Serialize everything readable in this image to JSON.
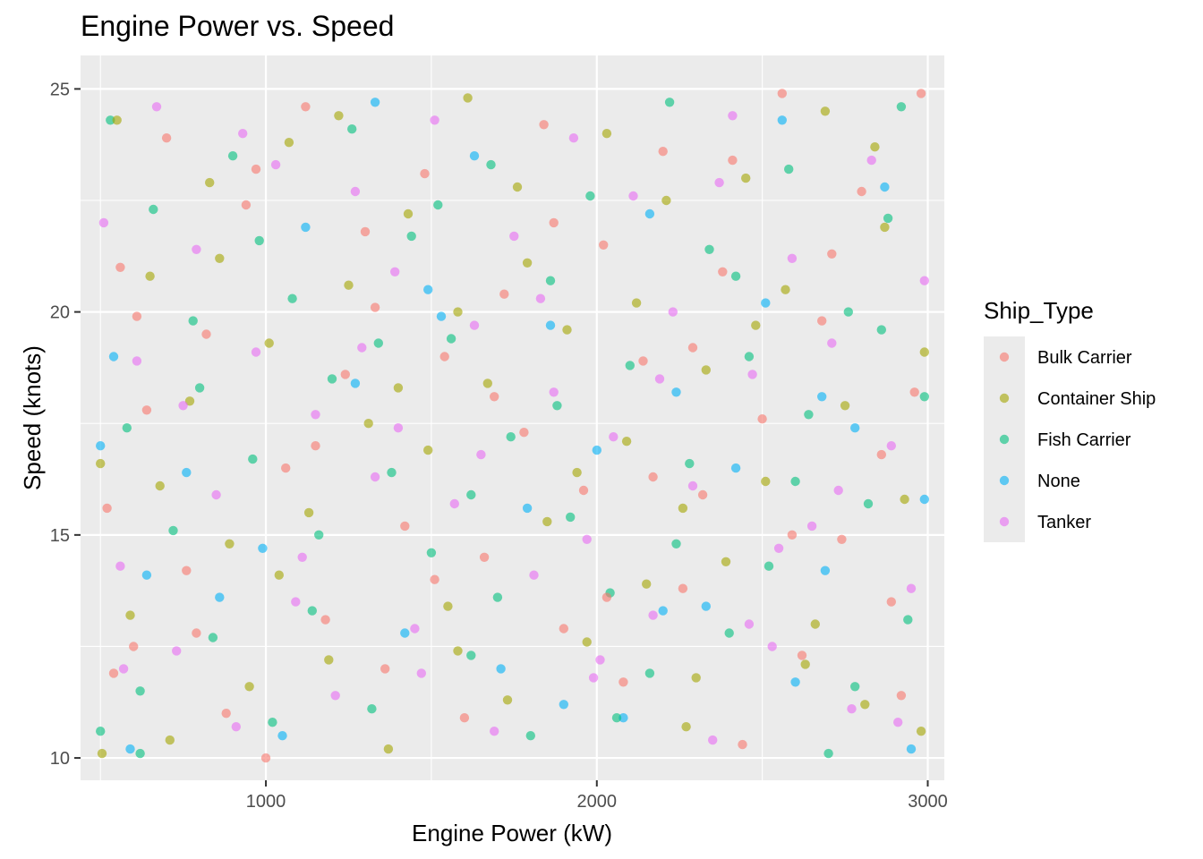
{
  "chart_data": {
    "type": "scatter",
    "title": "Engine Power vs. Speed",
    "xlabel": "Engine Power (kW)",
    "ylabel": "Speed (knots)",
    "xlim": [
      440,
      3050
    ],
    "ylim": [
      9.5,
      25.75
    ],
    "x_ticks": [
      1000,
      2000,
      3000
    ],
    "x_tick_labels": [
      "1000",
      "2000",
      "3000"
    ],
    "y_ticks": [
      10,
      15,
      20,
      25
    ],
    "y_tick_labels": [
      "10",
      "15",
      "20",
      "25"
    ],
    "grid": true,
    "legend": {
      "title": "Ship_Type",
      "placement": "right"
    },
    "point_opacity": 0.6,
    "series": [
      {
        "name": "Bulk Carrier",
        "color": "#F8766D",
        "points": [
          [
            520,
            15.6
          ],
          [
            560,
            21.0
          ],
          [
            600,
            12.5
          ],
          [
            640,
            17.8
          ],
          [
            700,
            23.9
          ],
          [
            760,
            14.2
          ],
          [
            820,
            19.5
          ],
          [
            880,
            11.0
          ],
          [
            940,
            22.4
          ],
          [
            1000,
            10.0
          ],
          [
            1060,
            16.5
          ],
          [
            1120,
            24.6
          ],
          [
            1180,
            13.1
          ],
          [
            1240,
            18.6
          ],
          [
            1300,
            21.8
          ],
          [
            1360,
            12.0
          ],
          [
            1420,
            15.2
          ],
          [
            1480,
            23.1
          ],
          [
            1540,
            19.0
          ],
          [
            1600,
            10.9
          ],
          [
            1660,
            14.5
          ],
          [
            1720,
            20.4
          ],
          [
            1780,
            17.3
          ],
          [
            1840,
            24.2
          ],
          [
            1900,
            12.9
          ],
          [
            1960,
            16.0
          ],
          [
            2020,
            21.5
          ],
          [
            2080,
            11.7
          ],
          [
            2140,
            18.9
          ],
          [
            2200,
            23.6
          ],
          [
            2260,
            13.8
          ],
          [
            2320,
            15.9
          ],
          [
            2380,
            20.9
          ],
          [
            2440,
            10.3
          ],
          [
            2500,
            17.6
          ],
          [
            2560,
            24.9
          ],
          [
            2620,
            12.3
          ],
          [
            2680,
            19.8
          ],
          [
            2740,
            14.9
          ],
          [
            2800,
            22.7
          ],
          [
            2860,
            16.8
          ],
          [
            2920,
            11.4
          ],
          [
            2980,
            24.9
          ],
          [
            2960,
            18.2
          ],
          [
            2890,
            13.5
          ],
          [
            2710,
            21.3
          ],
          [
            2590,
            15.0
          ],
          [
            2410,
            23.4
          ],
          [
            2290,
            19.2
          ],
          [
            2170,
            16.3
          ],
          [
            2030,
            13.6
          ],
          [
            1870,
            22.0
          ],
          [
            1690,
            18.1
          ],
          [
            1510,
            14.0
          ],
          [
            1330,
            20.1
          ],
          [
            1150,
            17.0
          ],
          [
            970,
            23.2
          ],
          [
            790,
            12.8
          ],
          [
            610,
            19.9
          ],
          [
            540,
            11.9
          ]
        ]
      },
      {
        "name": "Container Ship",
        "color": "#A3A500",
        "points": [
          [
            500,
            16.6
          ],
          [
            550,
            24.3
          ],
          [
            590,
            13.2
          ],
          [
            650,
            20.8
          ],
          [
            710,
            10.4
          ],
          [
            770,
            18.0
          ],
          [
            830,
            22.9
          ],
          [
            890,
            14.8
          ],
          [
            950,
            11.6
          ],
          [
            1010,
            19.3
          ],
          [
            1070,
            23.8
          ],
          [
            1130,
            15.5
          ],
          [
            1190,
            12.2
          ],
          [
            1250,
            20.6
          ],
          [
            1310,
            17.5
          ],
          [
            1370,
            10.2
          ],
          [
            1430,
            22.2
          ],
          [
            1490,
            16.9
          ],
          [
            1550,
            13.4
          ],
          [
            1610,
            24.8
          ],
          [
            1670,
            18.4
          ],
          [
            1730,
            11.3
          ],
          [
            1790,
            21.1
          ],
          [
            1850,
            15.3
          ],
          [
            1910,
            19.6
          ],
          [
            1970,
            12.6
          ],
          [
            2030,
            24.0
          ],
          [
            2090,
            17.1
          ],
          [
            2150,
            13.9
          ],
          [
            2210,
            22.5
          ],
          [
            2270,
            10.7
          ],
          [
            2330,
            18.7
          ],
          [
            2390,
            14.4
          ],
          [
            2450,
            23.0
          ],
          [
            2510,
            16.2
          ],
          [
            2570,
            20.5
          ],
          [
            2630,
            12.1
          ],
          [
            2690,
            24.5
          ],
          [
            2750,
            17.9
          ],
          [
            2810,
            11.2
          ],
          [
            2870,
            21.9
          ],
          [
            2930,
            15.8
          ],
          [
            2990,
            19.1
          ],
          [
            2980,
            10.6
          ],
          [
            2840,
            23.7
          ],
          [
            2660,
            13.0
          ],
          [
            2480,
            19.7
          ],
          [
            2300,
            11.8
          ],
          [
            2120,
            20.2
          ],
          [
            1940,
            16.4
          ],
          [
            1760,
            22.8
          ],
          [
            1580,
            12.4
          ],
          [
            1400,
            18.3
          ],
          [
            1220,
            24.4
          ],
          [
            1040,
            14.1
          ],
          [
            860,
            21.2
          ],
          [
            680,
            16.1
          ],
          [
            505,
            10.1
          ],
          [
            1580,
            20.0
          ],
          [
            2260,
            15.6
          ]
        ]
      },
      {
        "name": "Fish Carrier",
        "color": "#00BF7D",
        "points": [
          [
            530,
            24.3
          ],
          [
            580,
            17.4
          ],
          [
            620,
            11.5
          ],
          [
            660,
            22.3
          ],
          [
            720,
            15.1
          ],
          [
            780,
            19.8
          ],
          [
            840,
            12.7
          ],
          [
            900,
            23.5
          ],
          [
            960,
            16.7
          ],
          [
            1020,
            10.8
          ],
          [
            1080,
            20.3
          ],
          [
            1140,
            13.3
          ],
          [
            1200,
            18.5
          ],
          [
            1260,
            24.1
          ],
          [
            1320,
            11.1
          ],
          [
            1380,
            16.4
          ],
          [
            1440,
            21.7
          ],
          [
            1500,
            14.6
          ],
          [
            1560,
            19.4
          ],
          [
            1620,
            12.3
          ],
          [
            1680,
            23.3
          ],
          [
            1740,
            17.2
          ],
          [
            1800,
            10.5
          ],
          [
            1860,
            20.7
          ],
          [
            1920,
            15.4
          ],
          [
            1980,
            22.6
          ],
          [
            2040,
            13.7
          ],
          [
            2100,
            18.8
          ],
          [
            2160,
            11.9
          ],
          [
            2220,
            24.7
          ],
          [
            2280,
            16.6
          ],
          [
            2340,
            21.4
          ],
          [
            2400,
            12.8
          ],
          [
            2460,
            19.0
          ],
          [
            2520,
            14.3
          ],
          [
            2580,
            23.2
          ],
          [
            2640,
            17.7
          ],
          [
            2700,
            10.1
          ],
          [
            2760,
            20.0
          ],
          [
            2820,
            15.7
          ],
          [
            2880,
            22.1
          ],
          [
            2940,
            13.1
          ],
          [
            2990,
            18.1
          ],
          [
            2920,
            24.6
          ],
          [
            2780,
            11.6
          ],
          [
            2600,
            16.2
          ],
          [
            2420,
            20.8
          ],
          [
            2240,
            14.8
          ],
          [
            2060,
            10.9
          ],
          [
            1880,
            17.9
          ],
          [
            1700,
            13.6
          ],
          [
            1520,
            22.4
          ],
          [
            1340,
            19.3
          ],
          [
            1160,
            15.0
          ],
          [
            980,
            21.6
          ],
          [
            800,
            18.3
          ],
          [
            620,
            10.1
          ],
          [
            500,
            10.6
          ],
          [
            2860,
            19.6
          ],
          [
            1620,
            15.9
          ]
        ]
      },
      {
        "name": "None",
        "color": "#00B0F6",
        "points": [
          [
            500,
            17.0
          ],
          [
            540,
            19.0
          ],
          [
            590,
            10.2
          ],
          [
            760,
            16.4
          ],
          [
            860,
            13.6
          ],
          [
            990,
            14.7
          ],
          [
            1120,
            21.9
          ],
          [
            1270,
            18.4
          ],
          [
            1420,
            12.8
          ],
          [
            1530,
            19.9
          ],
          [
            1630,
            23.5
          ],
          [
            1790,
            15.6
          ],
          [
            1900,
            11.2
          ],
          [
            2000,
            16.9
          ],
          [
            2080,
            10.9
          ],
          [
            2160,
            22.2
          ],
          [
            2240,
            18.2
          ],
          [
            2330,
            13.4
          ],
          [
            2420,
            16.5
          ],
          [
            2510,
            20.2
          ],
          [
            2600,
            11.7
          ],
          [
            2690,
            14.2
          ],
          [
            2780,
            17.4
          ],
          [
            2870,
            22.8
          ],
          [
            2950,
            10.2
          ],
          [
            2990,
            15.8
          ],
          [
            2200,
            13.3
          ],
          [
            1710,
            12.0
          ],
          [
            1330,
            24.7
          ],
          [
            1050,
            10.5
          ],
          [
            640,
            14.1
          ],
          [
            2560,
            24.3
          ],
          [
            1860,
            19.7
          ],
          [
            2680,
            18.1
          ],
          [
            1490,
            20.5
          ]
        ]
      },
      {
        "name": "Tanker",
        "color": "#E76BF3",
        "points": [
          [
            510,
            22.0
          ],
          [
            560,
            14.3
          ],
          [
            610,
            18.9
          ],
          [
            670,
            24.6
          ],
          [
            730,
            12.4
          ],
          [
            790,
            21.4
          ],
          [
            850,
            15.9
          ],
          [
            910,
            10.7
          ],
          [
            970,
            19.1
          ],
          [
            1030,
            23.3
          ],
          [
            1090,
            13.5
          ],
          [
            1150,
            17.7
          ],
          [
            1210,
            11.4
          ],
          [
            1270,
            22.7
          ],
          [
            1330,
            16.3
          ],
          [
            1390,
            20.9
          ],
          [
            1450,
            12.9
          ],
          [
            1510,
            24.3
          ],
          [
            1570,
            15.7
          ],
          [
            1630,
            19.7
          ],
          [
            1690,
            10.6
          ],
          [
            1750,
            21.7
          ],
          [
            1810,
            14.1
          ],
          [
            1870,
            18.2
          ],
          [
            1930,
            23.9
          ],
          [
            1990,
            11.8
          ],
          [
            2050,
            17.2
          ],
          [
            2110,
            22.6
          ],
          [
            2170,
            13.2
          ],
          [
            2230,
            20.0
          ],
          [
            2290,
            16.1
          ],
          [
            2350,
            10.4
          ],
          [
            2410,
            24.4
          ],
          [
            2470,
            18.6
          ],
          [
            2530,
            12.5
          ],
          [
            2590,
            21.2
          ],
          [
            2650,
            15.2
          ],
          [
            2710,
            19.3
          ],
          [
            2770,
            11.1
          ],
          [
            2830,
            23.4
          ],
          [
            2890,
            17.0
          ],
          [
            2950,
            13.8
          ],
          [
            2990,
            20.7
          ],
          [
            2910,
            10.8
          ],
          [
            2730,
            16.0
          ],
          [
            2550,
            14.7
          ],
          [
            2370,
            22.9
          ],
          [
            2190,
            18.5
          ],
          [
            2010,
            12.2
          ],
          [
            1830,
            20.3
          ],
          [
            1650,
            16.8
          ],
          [
            1470,
            11.9
          ],
          [
            1290,
            19.2
          ],
          [
            1110,
            14.5
          ],
          [
            930,
            24.0
          ],
          [
            750,
            17.9
          ],
          [
            570,
            12.0
          ],
          [
            1970,
            14.9
          ],
          [
            2460,
            13.0
          ],
          [
            1400,
            17.4
          ]
        ]
      }
    ]
  }
}
